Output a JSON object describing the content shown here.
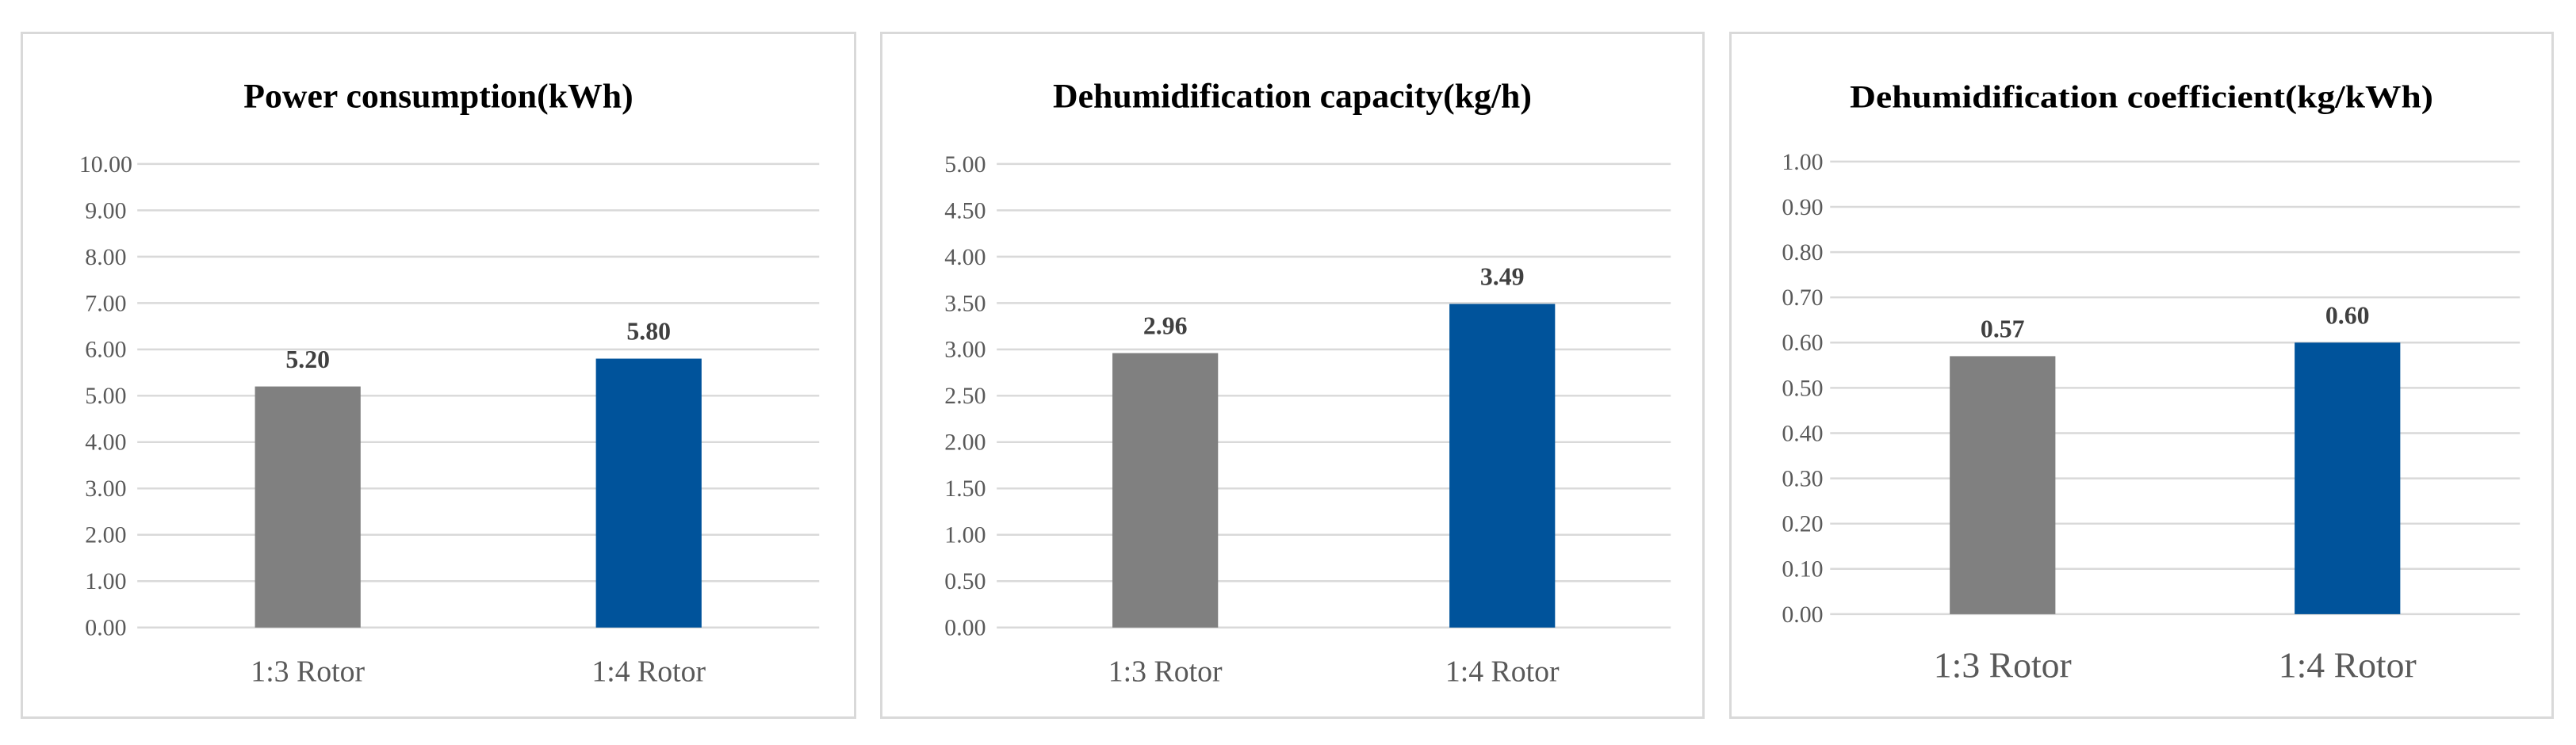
{
  "chart_data": [
    {
      "type": "bar",
      "title": "Power consumption(kWh)",
      "categories": [
        "1:3 Rotor",
        "1:4 Rotor"
      ],
      "values": [
        5.2,
        5.8
      ],
      "value_labels": [
        "5.20",
        "5.80"
      ],
      "ylim": [
        0,
        10
      ],
      "yticks": [
        "0.00",
        "1.00",
        "2.00",
        "3.00",
        "4.00",
        "5.00",
        "6.00",
        "7.00",
        "8.00",
        "9.00",
        "10.00"
      ],
      "bar_colors": [
        "#808080",
        "#00539b"
      ],
      "grid": true,
      "legend": "none"
    },
    {
      "type": "bar",
      "title": "Dehumidification capacity(kg/h)",
      "categories": [
        "1:3 Rotor",
        "1:4 Rotor"
      ],
      "values": [
        2.96,
        3.49
      ],
      "value_labels": [
        "2.96",
        "3.49"
      ],
      "ylim": [
        0,
        5
      ],
      "yticks": [
        "0.00",
        "0.50",
        "1.00",
        "1.50",
        "2.00",
        "2.50",
        "3.00",
        "3.50",
        "4.00",
        "4.50",
        "5.00"
      ],
      "bar_colors": [
        "#808080",
        "#00539b"
      ],
      "grid": true,
      "legend": "none"
    },
    {
      "type": "bar",
      "title": "Dehumidification coefficient(kg/kWh)",
      "categories": [
        "1:3 Rotor",
        "1:4 Rotor"
      ],
      "values": [
        0.57,
        0.6
      ],
      "value_labels": [
        "0.57",
        "0.60"
      ],
      "ylim": [
        0,
        1
      ],
      "yticks": [
        "0.00",
        "0.10",
        "0.20",
        "0.30",
        "0.40",
        "0.50",
        "0.60",
        "0.70",
        "0.80",
        "0.90",
        "1.00"
      ],
      "bar_colors": [
        "#808080",
        "#00539b"
      ],
      "grid": true,
      "legend": "none"
    }
  ]
}
